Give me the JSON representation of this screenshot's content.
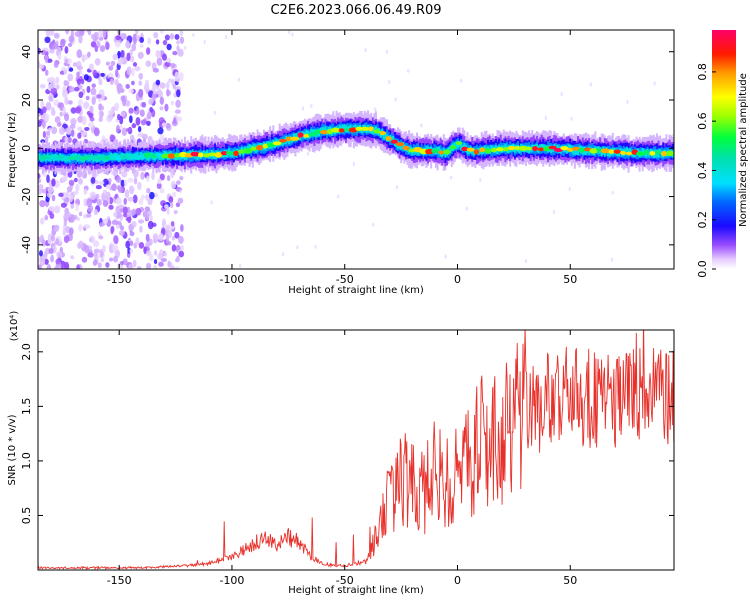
{
  "figure_title": "C2E6.2023.066.06.49.R09",
  "chart_data": [
    {
      "type": "heatmap",
      "title": "",
      "xlabel": "Height of straight line (km)",
      "ylabel": "Frequency (Hz)",
      "xlim": [
        -186,
        96
      ],
      "ylim": [
        -50,
        49
      ],
      "xticks": [
        -150,
        -100,
        -50,
        0,
        50
      ],
      "yticks": [
        -40,
        -20,
        0,
        20,
        40
      ],
      "ytick_labels": [
        "-40",
        "-20",
        "0",
        "20",
        "40"
      ],
      "colorbar": {
        "label": "Normalized spectral amplitude",
        "range": [
          0,
          0.97
        ],
        "ticks": [
          0.0,
          0.2,
          0.4,
          0.6,
          0.8
        ],
        "tick_labels": [
          "0.0",
          "0.2",
          "0.4",
          "0.6",
          "0.8"
        ],
        "colormap": "rainbow (white-lavender low to red-magenta high)"
      },
      "ridge": {
        "description": "dominant frequency vs height",
        "x": [
          -186,
          -160,
          -130,
          -120,
          -100,
          -90,
          -80,
          -70,
          -60,
          -50,
          -45,
          -40,
          -35,
          -30,
          -25,
          -20,
          -10,
          -5,
          0,
          5,
          10,
          20,
          40,
          60,
          80,
          96
        ],
        "y": [
          -4,
          -4,
          -3,
          -3,
          -2,
          0,
          2,
          5,
          7,
          8,
          8,
          8,
          7,
          4,
          1,
          -1,
          -1,
          -2,
          2,
          -1,
          -1,
          0,
          0,
          -1,
          -2,
          -2
        ]
      },
      "noise_region_x": [
        -186,
        -130
      ]
    },
    {
      "type": "line",
      "title": "",
      "xlabel": "Height of straight line (km)",
      "ylabel": "SNR (10 * v/v)",
      "y_multiplier": "(x10⁴)",
      "xlim": [
        -186,
        96
      ],
      "ylim": [
        0,
        2.2
      ],
      "xticks": [
        -150,
        -100,
        -50,
        0,
        50
      ],
      "yticks": [
        0.5,
        1.0,
        1.5,
        2.0
      ],
      "ytick_labels": [
        "0.5",
        "1.0",
        "1.5",
        "2.0"
      ],
      "color": "#e8302a",
      "envelope_x": [
        -186,
        -140,
        -120,
        -110,
        -100,
        -95,
        -90,
        -85,
        -80,
        -75,
        -70,
        -65,
        -60,
        -55,
        -50,
        -40,
        -35,
        -30,
        -25,
        -20,
        -15,
        -10,
        -5,
        0,
        5,
        10,
        20,
        30,
        40,
        50,
        60,
        70,
        80,
        96
      ],
      "envelope_y": [
        0.02,
        0.02,
        0.04,
        0.06,
        0.12,
        0.18,
        0.25,
        0.28,
        0.22,
        0.3,
        0.25,
        0.12,
        0.06,
        0.04,
        0.04,
        0.08,
        0.35,
        0.65,
        0.85,
        0.75,
        0.7,
        0.9,
        0.8,
        0.85,
        1.0,
        1.15,
        1.3,
        1.45,
        1.55,
        1.6,
        1.6,
        1.58,
        1.6,
        1.6
      ]
    }
  ]
}
